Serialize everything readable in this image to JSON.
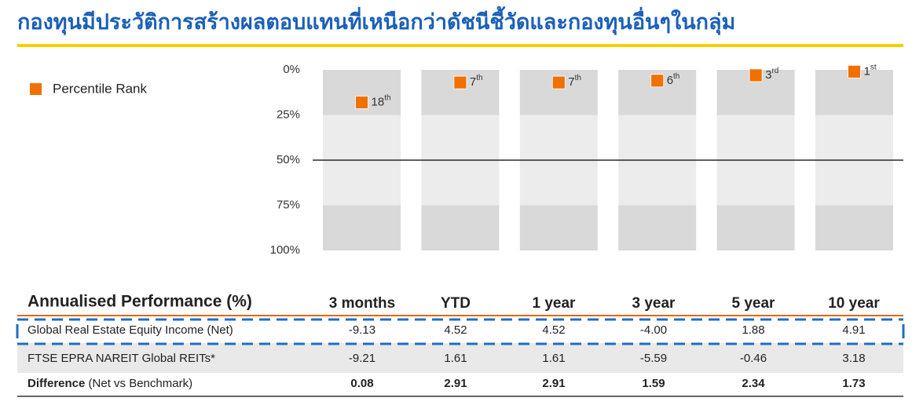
{
  "title": "กองทุนมีประวัติการสร้างผลตอบแทนที่เหนือกว่าดัชนีชี้วัดและกองทุนอื่นๆในกลุ่ม",
  "chart_data": {
    "type": "rank",
    "series": [
      {
        "name": "Percentile Rank",
        "color": "#f07000",
        "values": [
          18,
          7,
          7,
          6,
          3,
          1
        ],
        "value_labels": [
          "18th",
          "7th",
          "7th",
          "6th",
          "3rd",
          "1st"
        ]
      }
    ],
    "ylim": [
      0,
      100
    ],
    "y_inverted": true,
    "yticks": [
      {
        "value": 0,
        "label": "0%"
      },
      {
        "value": 25,
        "label": "25%"
      },
      {
        "value": 50,
        "label": "50%"
      },
      {
        "value": 75,
        "label": "75%"
      },
      {
        "value": 100,
        "label": "100%"
      }
    ],
    "reference_line": 50
  },
  "table": {
    "title": "Annualised Performance (%)",
    "columns": [
      "3 months",
      "YTD",
      "1 year",
      "3 year",
      "5 year",
      "10 year"
    ],
    "rows": [
      {
        "label": "Global Real Estate Equity Income (Net)",
        "values": [
          "-9.13",
          "4.52",
          "4.52",
          "-4.00",
          "1.88",
          "4.91"
        ]
      },
      {
        "label": "FTSE EPRA NAREIT Global REITs*",
        "values": [
          "-9.21",
          "1.61",
          "1.61",
          "-5.59",
          "-0.46",
          "3.18"
        ]
      },
      {
        "label": "Difference",
        "note": "(Net vs Benchmark)",
        "values": [
          "0.08",
          "2.91",
          "2.91",
          "1.59",
          "2.34",
          "1.73"
        ]
      }
    ]
  }
}
